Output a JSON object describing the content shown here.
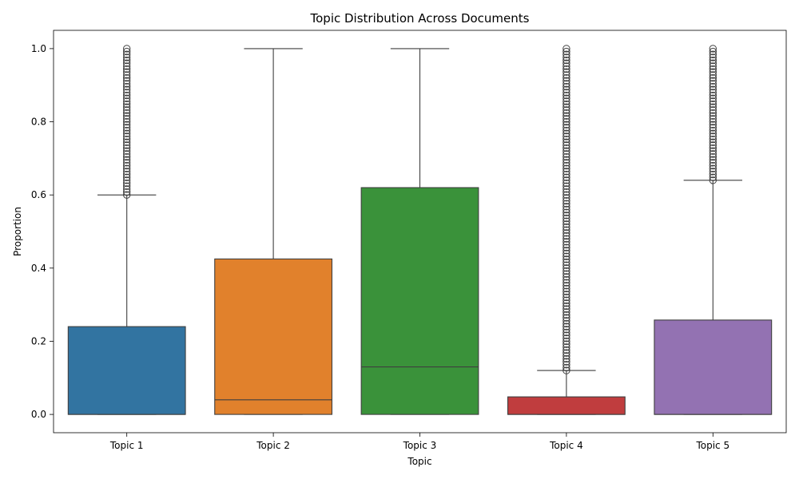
{
  "chart_data": {
    "type": "box",
    "title": "Topic Distribution Across Documents",
    "xlabel": "Topic",
    "ylabel": "Proportion",
    "ylim": [
      -0.05,
      1.05
    ],
    "yticks": [
      "0.0",
      "0.2",
      "0.4",
      "0.6",
      "0.8",
      "1.0"
    ],
    "categories": [
      "Topic 1",
      "Topic 2",
      "Topic 3",
      "Topic 4",
      "Topic 5"
    ],
    "boxes": [
      {
        "category": "Topic 1",
        "color": "#3274a1",
        "whisker_low": 0.0,
        "q1": 0.0,
        "median": 0.0,
        "q3": 0.24,
        "whisker_high": 0.6,
        "outliers": [
          0.6,
          1.0
        ]
      },
      {
        "category": "Topic 2",
        "color": "#e1812c",
        "whisker_low": 0.0,
        "q1": 0.0,
        "median": 0.04,
        "q3": 0.425,
        "whisker_high": 1.0,
        "outliers": []
      },
      {
        "category": "Topic 3",
        "color": "#3a923a",
        "whisker_low": 0.0,
        "q1": 0.0,
        "median": 0.13,
        "q3": 0.62,
        "whisker_high": 1.0,
        "outliers": []
      },
      {
        "category": "Topic 4",
        "color": "#c03d3e",
        "whisker_low": 0.0,
        "q1": 0.0,
        "median": 0.0,
        "q3": 0.048,
        "whisker_high": 0.12,
        "outliers": [
          0.12,
          1.0
        ]
      },
      {
        "category": "Topic 5",
        "color": "#9372b2",
        "whisker_low": 0.0,
        "q1": 0.0,
        "median": 0.0,
        "q3": 0.258,
        "whisker_high": 0.64,
        "outliers": [
          0.64,
          1.0
        ]
      }
    ],
    "grid": false,
    "legend": "none"
  }
}
